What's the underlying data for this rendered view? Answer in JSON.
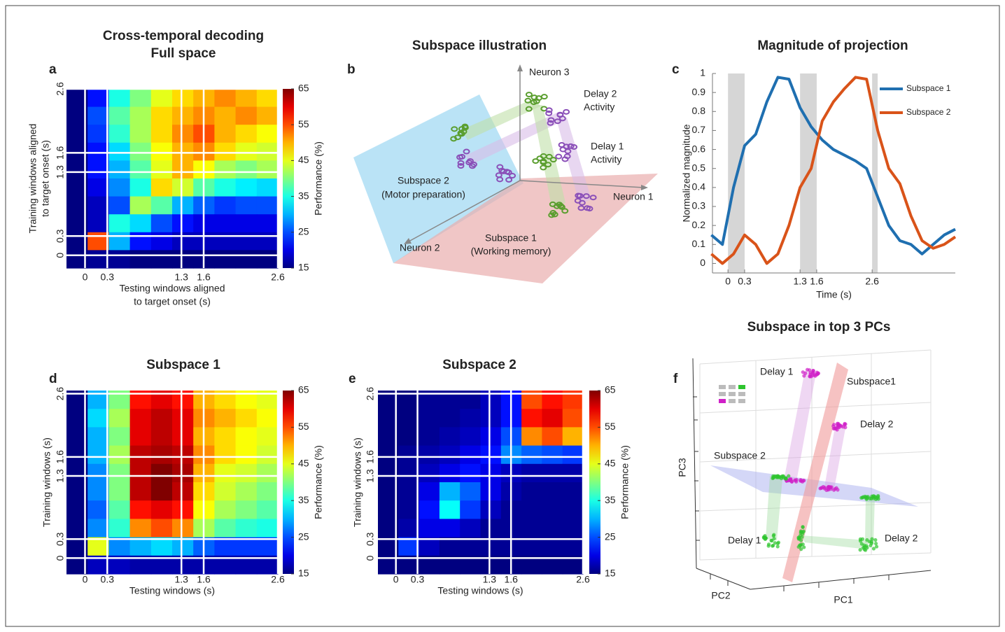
{
  "chart_data": [
    {
      "type": "heatmap",
      "panel": "a",
      "title": [
        "Cross-temporal decoding",
        "Full space"
      ],
      "xlabel": [
        "Testing windows aligned",
        "to target onset (s)"
      ],
      "ylabel": [
        "Training windows aligned",
        "to target onset (s)"
      ],
      "xlim": [
        -0.25,
        2.6
      ],
      "ylim": [
        -0.2,
        2.6
      ],
      "xticks": [
        0,
        0.3,
        1.3,
        1.6,
        2.6
      ],
      "yticks": [
        0,
        0.3,
        1.3,
        1.6,
        2.6
      ],
      "grid": true,
      "colormap": "jet",
      "colorbar": {
        "label": "Performance (%)",
        "lim": [
          15,
          65
        ],
        "ticks": [
          15,
          25,
          35,
          45,
          55,
          65
        ]
      },
      "z": [
        [
          15,
          22,
          35,
          40,
          45,
          48,
          50,
          52,
          50,
          48
        ],
        [
          15,
          25,
          38,
          42,
          48,
          50,
          52,
          50,
          52,
          50
        ],
        [
          15,
          24,
          36,
          42,
          48,
          52,
          55,
          50,
          48,
          46
        ],
        [
          15,
          22,
          32,
          40,
          46,
          50,
          52,
          48,
          45,
          44
        ],
        [
          15,
          22,
          30,
          38,
          45,
          50,
          46,
          42,
          40,
          42
        ],
        [
          15,
          20,
          28,
          35,
          48,
          44,
          38,
          35,
          33,
          32
        ],
        [
          15,
          18,
          25,
          42,
          38,
          30,
          26,
          24,
          25,
          25
        ],
        [
          15,
          18,
          35,
          32,
          25,
          22,
          20,
          20,
          20,
          20
        ],
        [
          15,
          55,
          30,
          22,
          20,
          18,
          18,
          18,
          18,
          18
        ],
        [
          15,
          16,
          16,
          15,
          15,
          15,
          15,
          15,
          15,
          15
        ]
      ]
    },
    {
      "type": "line",
      "panel": "c",
      "title": "Magnitude of projection",
      "xlabel": "Time (s)",
      "ylabel": "Normalized magnitude",
      "xlim": [
        -0.28,
        4.1
      ],
      "ylim": [
        -0.05,
        1
      ],
      "xticks": [
        0,
        0.3,
        1.3,
        1.6,
        2.6
      ],
      "yticks": [
        0,
        0.1,
        0.2,
        0.3,
        0.4,
        0.5,
        0.6,
        0.7,
        0.8,
        0.9,
        1
      ],
      "shaded": [
        [
          0,
          0.3
        ],
        [
          1.3,
          1.6
        ],
        [
          2.6,
          2.7
        ]
      ],
      "legend": "upper right",
      "x": [
        -0.3,
        -0.1,
        0.1,
        0.3,
        0.5,
        0.7,
        0.9,
        1.1,
        1.3,
        1.5,
        1.7,
        1.9,
        2.1,
        2.3,
        2.5,
        2.7,
        2.9,
        3.1,
        3.3,
        3.5,
        3.7,
        3.9,
        4.1
      ],
      "series": [
        {
          "name": "Subspace 1",
          "color": "#1f6fb0",
          "values": [
            0.15,
            0.1,
            0.4,
            0.62,
            0.68,
            0.85,
            0.98,
            0.97,
            0.82,
            0.72,
            0.65,
            0.6,
            0.57,
            0.54,
            0.5,
            0.35,
            0.2,
            0.12,
            0.1,
            0.05,
            0.1,
            0.15,
            0.18
          ]
        },
        {
          "name": "Subspace 2",
          "color": "#d95319",
          "values": [
            0.05,
            0.0,
            0.05,
            0.15,
            0.1,
            0.0,
            0.05,
            0.2,
            0.4,
            0.5,
            0.75,
            0.85,
            0.92,
            0.98,
            0.97,
            0.7,
            0.5,
            0.42,
            0.25,
            0.12,
            0.08,
            0.1,
            0.14
          ]
        }
      ]
    },
    {
      "type": "heatmap",
      "panel": "d",
      "title": "Subspace 1",
      "xlabel": "Testing windows (s)",
      "ylabel": "Training windows (s)",
      "xlim": [
        -0.25,
        2.6
      ],
      "ylim": [
        -0.25,
        2.65
      ],
      "xticks": [
        0,
        0.3,
        1.3,
        1.6,
        2.6
      ],
      "yticks": [
        0,
        0.3,
        1.3,
        1.6,
        2.6
      ],
      "grid": true,
      "colormap": "jet",
      "colorbar": {
        "label": "Performance (%)",
        "lim": [
          15,
          65
        ],
        "ticks": [
          15,
          25,
          35,
          45,
          55,
          65
        ]
      },
      "z": [
        [
          15,
          30,
          40,
          58,
          60,
          58,
          50,
          48,
          46,
          45
        ],
        [
          15,
          32,
          42,
          60,
          62,
          60,
          52,
          50,
          48,
          46
        ],
        [
          15,
          30,
          40,
          60,
          62,
          60,
          50,
          48,
          46,
          45
        ],
        [
          15,
          30,
          42,
          62,
          63,
          62,
          52,
          48,
          46,
          44
        ],
        [
          15,
          28,
          40,
          62,
          65,
          63,
          50,
          45,
          44,
          42
        ],
        [
          15,
          28,
          40,
          62,
          65,
          62,
          48,
          44,
          42,
          40
        ],
        [
          15,
          26,
          38,
          58,
          60,
          58,
          46,
          42,
          40,
          38
        ],
        [
          15,
          28,
          36,
          52,
          55,
          52,
          42,
          38,
          36,
          35
        ],
        [
          15,
          45,
          28,
          30,
          32,
          30,
          26,
          24,
          24,
          24
        ],
        [
          15,
          18,
          18,
          17,
          17,
          17,
          17,
          17,
          17,
          17
        ]
      ]
    },
    {
      "type": "heatmap",
      "panel": "e",
      "title": "Subspace 2",
      "xlabel": "Testing windows (s)",
      "ylabel": "Training windows (s)",
      "xlim": [
        -0.25,
        2.6
      ],
      "ylim": [
        -0.25,
        2.65
      ],
      "xticks": [
        0,
        0.3,
        1.3,
        1.6,
        2.6
      ],
      "yticks": [
        0,
        0.3,
        1.3,
        1.6,
        2.6
      ],
      "grid": true,
      "colormap": "jet",
      "colorbar": {
        "label": "Performance (%)",
        "lim": [
          15,
          65
        ],
        "ticks": [
          15,
          25,
          35,
          45,
          55,
          65
        ]
      },
      "z": [
        [
          15,
          15,
          16,
          16,
          16,
          18,
          22,
          55,
          58,
          56
        ],
        [
          15,
          15,
          16,
          16,
          17,
          18,
          22,
          58,
          60,
          55
        ],
        [
          15,
          15,
          16,
          17,
          18,
          20,
          25,
          52,
          55,
          50
        ],
        [
          15,
          16,
          17,
          18,
          20,
          22,
          28,
          26,
          25,
          24
        ],
        [
          15,
          16,
          18,
          20,
          22,
          20,
          18,
          17,
          17,
          17
        ],
        [
          15,
          16,
          20,
          30,
          26,
          20,
          17,
          16,
          16,
          16
        ],
        [
          15,
          16,
          22,
          34,
          24,
          18,
          16,
          16,
          16,
          16
        ],
        [
          15,
          17,
          20,
          20,
          18,
          16,
          16,
          16,
          16,
          16
        ],
        [
          15,
          24,
          18,
          16,
          16,
          16,
          16,
          16,
          16,
          16
        ],
        [
          15,
          15,
          15,
          15,
          15,
          15,
          15,
          15,
          15,
          15
        ]
      ]
    }
  ],
  "panel_b": {
    "letter": "b",
    "title": "Subspace illustration",
    "labels": [
      "Neuron 3",
      "Delay 2",
      "Activity",
      "Delay 1",
      "Activity",
      "Subspace 2",
      "(Motor preparation)",
      "Neuron 1",
      "Subspace 1",
      "(Working memory)",
      "Neuron 2"
    ]
  },
  "panel_f": {
    "letter": "f",
    "title": "Subspace in top 3 PCs",
    "labels": [
      "Delay 1",
      "Subspace1",
      "Delay 2",
      "Subspace 2",
      "Delay 1",
      "Delay 2"
    ],
    "axes": [
      "PC3",
      "PC2",
      "PC1"
    ]
  }
}
